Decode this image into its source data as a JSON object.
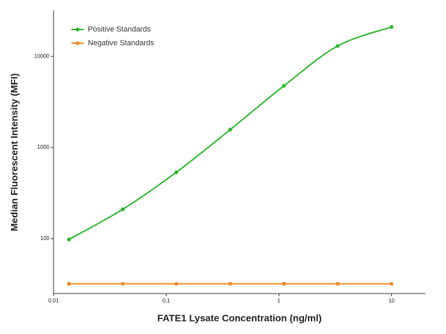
{
  "chart_data": {
    "type": "line",
    "x_label": "FATE1 Lysate Concentration (ng/ml)",
    "y_label": "Median  Fluorescent Intensity  (MFI)",
    "x": [
      0.0137,
      0.0412,
      0.123,
      0.37,
      1.11,
      3.33,
      10
    ],
    "series": [
      {
        "name": "Positive Standards",
        "color": "#2db52d",
        "values": [
          98,
          210,
          535,
          1570,
          4750,
          13000,
          21000
        ]
      },
      {
        "name": "Negative Standards",
        "color": "#f08a24",
        "values": [
          32,
          32,
          32,
          32,
          32,
          32,
          32
        ]
      }
    ],
    "xlim": [
      0.01,
      20
    ],
    "xticks": [
      0.01,
      0.1,
      1,
      10
    ],
    "ylim": [
      25,
      32000
    ],
    "yticks": [
      100,
      1000,
      10000
    ],
    "xscale": "log",
    "yscale": "log",
    "legend": "upper left"
  }
}
